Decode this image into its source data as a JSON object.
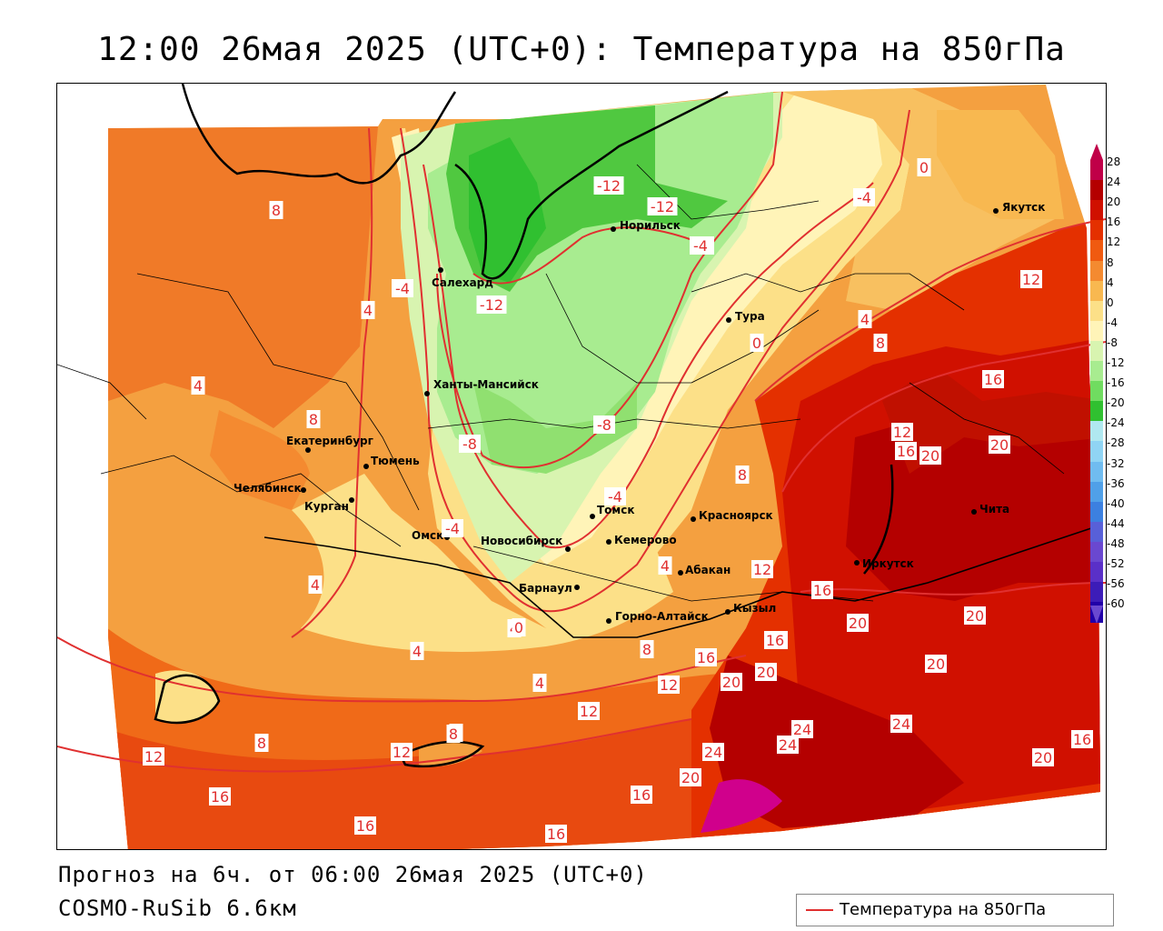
{
  "title": "12:00 26мая 2025 (UTC+0): Температура на 850гПа",
  "footer": {
    "forecast": "Прогноз на 6ч. от 06:00 26мая 2025 (UTC+0)",
    "model": "COSMO-RuSib 6.6км"
  },
  "legend": {
    "label": "Температура на 850гПа",
    "line_color": "#e03030"
  },
  "colorbar": {
    "ticks": [
      "28",
      "24",
      "20",
      "16",
      "12",
      "8",
      "4",
      "0",
      "-4",
      "-8",
      "-12",
      "-16",
      "-20",
      "-24",
      "-28",
      "-32",
      "-36",
      "-40",
      "-44",
      "-48",
      "-52",
      "-56",
      "-60"
    ],
    "colors": [
      "#c00048",
      "#b40000",
      "#d01000",
      "#e43000",
      "#f05a10",
      "#f48a30",
      "#f8b850",
      "#fce088",
      "#fff4b8",
      "#d8f4b0",
      "#a8ec90",
      "#70dc60",
      "#30c030",
      "#b0e8f0",
      "#90d4f4",
      "#70bcf0",
      "#50a0e8",
      "#3c80e0",
      "#5860d8",
      "#6a48d0",
      "#5a30c8",
      "#3c1cb8",
      "#2000a8"
    ]
  },
  "cities": [
    {
      "name": "Якутск"
    },
    {
      "name": "Норильск"
    },
    {
      "name": "Салехард"
    },
    {
      "name": "Тура"
    },
    {
      "name": "Ханты-Мансийск"
    },
    {
      "name": "Екатеринбург"
    },
    {
      "name": "Тюмень"
    },
    {
      "name": "Челябинск"
    },
    {
      "name": "Курган"
    },
    {
      "name": "Омск"
    },
    {
      "name": "Томск"
    },
    {
      "name": "Красноярск"
    },
    {
      "name": "Новосибирск"
    },
    {
      "name": "Кемерово"
    },
    {
      "name": "Абакан"
    },
    {
      "name": "Барнаул"
    },
    {
      "name": "Иркутск"
    },
    {
      "name": "Чита"
    },
    {
      "name": "Кызыл"
    },
    {
      "name": "Горно-Алтайск"
    }
  ],
  "isolines": [
    "8",
    "8",
    "4",
    "-4",
    "4",
    "8",
    "4",
    "4",
    "12",
    "16",
    "16",
    "8",
    "4",
    "16",
    "16",
    "12",
    "12",
    "-12",
    "-12",
    "-8",
    "-12",
    "0",
    "-4",
    "-8",
    "0",
    "4",
    "8",
    "16",
    "12",
    "16",
    "20",
    "20",
    "-8",
    "-4",
    "-4",
    "0",
    "8",
    "16",
    "20",
    "12",
    "20",
    "20",
    "4",
    "12",
    "16",
    "20",
    "24",
    "24",
    "24",
    "20",
    "20",
    "16",
    "8",
    "12",
    "-4",
    "4",
    "8",
    "20",
    "16",
    "16",
    "24"
  ]
}
